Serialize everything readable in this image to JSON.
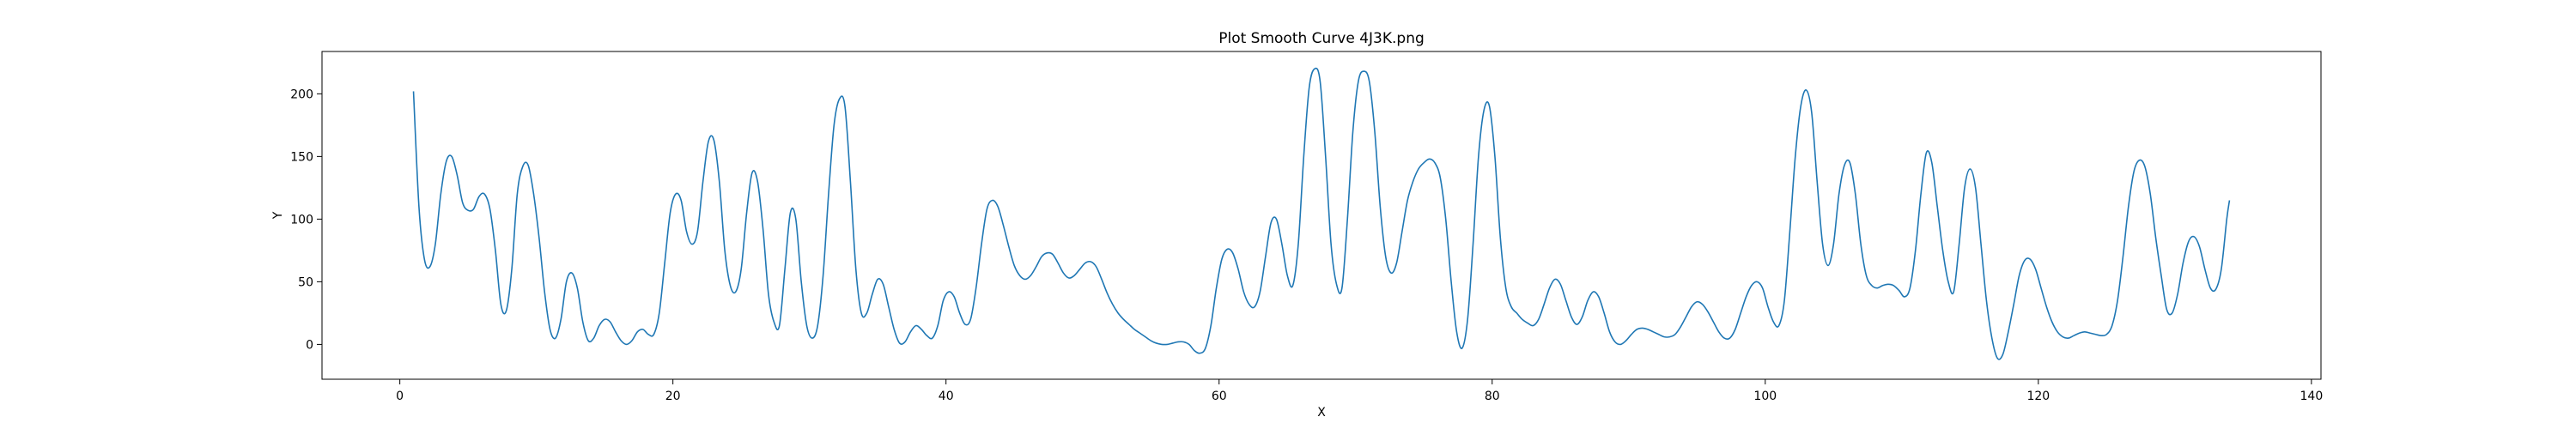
{
  "chart_data": {
    "type": "line",
    "title": "Plot Smooth Curve 4J3K.png",
    "xlabel": "X",
    "ylabel": "Y",
    "xlim": [
      -5.7,
      140.7
    ],
    "ylim": [
      -27.8,
      233.8
    ],
    "x_ticks": [
      0,
      20,
      40,
      60,
      80,
      100,
      120,
      140
    ],
    "y_ticks": [
      0,
      50,
      100,
      150,
      200
    ],
    "grid": false,
    "series": [
      {
        "color": "#1f77b4",
        "points": [
          [
            1,
            202
          ],
          [
            1.4,
            110
          ],
          [
            1.8,
            68
          ],
          [
            2.2,
            62
          ],
          [
            2.6,
            80
          ],
          [
            3.0,
            120
          ],
          [
            3.4,
            146
          ],
          [
            3.8,
            150
          ],
          [
            4.2,
            135
          ],
          [
            4.6,
            113
          ],
          [
            5.0,
            107
          ],
          [
            5.4,
            108
          ],
          [
            5.8,
            118
          ],
          [
            6.2,
            120
          ],
          [
            6.6,
            108
          ],
          [
            7.0,
            75
          ],
          [
            7.4,
            32
          ],
          [
            7.8,
            27
          ],
          [
            8.2,
            60
          ],
          [
            8.6,
            120
          ],
          [
            9.0,
            142
          ],
          [
            9.4,
            143
          ],
          [
            9.8,
            120
          ],
          [
            10.2,
            85
          ],
          [
            10.6,
            42
          ],
          [
            11.0,
            12
          ],
          [
            11.4,
            5
          ],
          [
            11.8,
            20
          ],
          [
            12.2,
            50
          ],
          [
            12.6,
            57
          ],
          [
            13.0,
            45
          ],
          [
            13.4,
            18
          ],
          [
            13.8,
            3
          ],
          [
            14.2,
            5
          ],
          [
            14.6,
            15
          ],
          [
            15.0,
            20
          ],
          [
            15.4,
            18
          ],
          [
            15.8,
            10
          ],
          [
            16.2,
            3
          ],
          [
            16.6,
            0
          ],
          [
            17.0,
            3
          ],
          [
            17.4,
            10
          ],
          [
            17.8,
            12
          ],
          [
            18.2,
            8
          ],
          [
            18.6,
            8
          ],
          [
            19.0,
            25
          ],
          [
            19.4,
            65
          ],
          [
            19.8,
            105
          ],
          [
            20.2,
            120
          ],
          [
            20.6,
            115
          ],
          [
            21.0,
            90
          ],
          [
            21.4,
            80
          ],
          [
            21.8,
            90
          ],
          [
            22.2,
            130
          ],
          [
            22.6,
            162
          ],
          [
            23.0,
            163
          ],
          [
            23.4,
            130
          ],
          [
            23.8,
            75
          ],
          [
            24.2,
            47
          ],
          [
            24.6,
            42
          ],
          [
            25.0,
            60
          ],
          [
            25.4,
            105
          ],
          [
            25.8,
            137
          ],
          [
            26.2,
            130
          ],
          [
            26.6,
            92
          ],
          [
            27.0,
            40
          ],
          [
            27.4,
            18
          ],
          [
            27.8,
            15
          ],
          [
            28.2,
            60
          ],
          [
            28.6,
            105
          ],
          [
            29.0,
            100
          ],
          [
            29.4,
            50
          ],
          [
            29.8,
            15
          ],
          [
            30.2,
            5
          ],
          [
            30.6,
            15
          ],
          [
            31.0,
            55
          ],
          [
            31.4,
            120
          ],
          [
            31.8,
            175
          ],
          [
            32.2,
            196
          ],
          [
            32.6,
            190
          ],
          [
            33.0,
            130
          ],
          [
            33.4,
            60
          ],
          [
            33.8,
            25
          ],
          [
            34.2,
            25
          ],
          [
            34.6,
            40
          ],
          [
            35.0,
            52
          ],
          [
            35.4,
            48
          ],
          [
            35.8,
            30
          ],
          [
            36.2,
            12
          ],
          [
            36.6,
            1
          ],
          [
            37.0,
            2
          ],
          [
            37.4,
            10
          ],
          [
            37.8,
            15
          ],
          [
            38.2,
            12
          ],
          [
            38.6,
            7
          ],
          [
            39.0,
            5
          ],
          [
            39.4,
            15
          ],
          [
            39.8,
            35
          ],
          [
            40.2,
            42
          ],
          [
            40.6,
            38
          ],
          [
            41.0,
            25
          ],
          [
            41.4,
            16
          ],
          [
            41.8,
            20
          ],
          [
            42.2,
            45
          ],
          [
            42.6,
            80
          ],
          [
            43.0,
            108
          ],
          [
            43.4,
            115
          ],
          [
            43.8,
            110
          ],
          [
            44.2,
            95
          ],
          [
            44.6,
            78
          ],
          [
            45.0,
            63
          ],
          [
            45.4,
            55
          ],
          [
            45.8,
            52
          ],
          [
            46.2,
            55
          ],
          [
            46.6,
            62
          ],
          [
            47.0,
            70
          ],
          [
            47.4,
            73
          ],
          [
            47.8,
            72
          ],
          [
            48.2,
            65
          ],
          [
            48.6,
            57
          ],
          [
            49.0,
            53
          ],
          [
            49.4,
            55
          ],
          [
            49.8,
            60
          ],
          [
            50.2,
            65
          ],
          [
            50.6,
            66
          ],
          [
            51.0,
            62
          ],
          [
            51.4,
            52
          ],
          [
            51.8,
            41
          ],
          [
            52.2,
            32
          ],
          [
            52.6,
            25
          ],
          [
            53.0,
            20
          ],
          [
            53.4,
            16
          ],
          [
            53.8,
            12
          ],
          [
            54.2,
            9
          ],
          [
            54.6,
            6
          ],
          [
            55.0,
            3
          ],
          [
            55.4,
            1
          ],
          [
            55.8,
            0
          ],
          [
            56.2,
            0
          ],
          [
            56.6,
            1
          ],
          [
            57.0,
            2
          ],
          [
            57.4,
            2
          ],
          [
            57.8,
            0
          ],
          [
            58.2,
            -5
          ],
          [
            58.6,
            -7
          ],
          [
            59.0,
            -3
          ],
          [
            59.4,
            15
          ],
          [
            59.8,
            45
          ],
          [
            60.2,
            68
          ],
          [
            60.6,
            76
          ],
          [
            61.0,
            73
          ],
          [
            61.4,
            60
          ],
          [
            61.8,
            42
          ],
          [
            62.2,
            32
          ],
          [
            62.6,
            30
          ],
          [
            63.0,
            42
          ],
          [
            63.4,
            70
          ],
          [
            63.8,
            97
          ],
          [
            64.2,
            100
          ],
          [
            64.6,
            80
          ],
          [
            65.0,
            55
          ],
          [
            65.4,
            47
          ],
          [
            65.8,
            80
          ],
          [
            66.2,
            150
          ],
          [
            66.6,
            205
          ],
          [
            67.0,
            220
          ],
          [
            67.4,
            210
          ],
          [
            67.8,
            150
          ],
          [
            68.2,
            80
          ],
          [
            68.6,
            48
          ],
          [
            69.0,
            45
          ],
          [
            69.4,
            100
          ],
          [
            69.8,
            170
          ],
          [
            70.2,
            210
          ],
          [
            70.6,
            218
          ],
          [
            71.0,
            210
          ],
          [
            71.4,
            170
          ],
          [
            71.8,
            110
          ],
          [
            72.2,
            70
          ],
          [
            72.6,
            57
          ],
          [
            73.0,
            65
          ],
          [
            73.4,
            90
          ],
          [
            73.8,
            115
          ],
          [
            74.2,
            130
          ],
          [
            74.6,
            140
          ],
          [
            75.0,
            145
          ],
          [
            75.4,
            148
          ],
          [
            75.8,
            145
          ],
          [
            76.2,
            133
          ],
          [
            76.6,
            100
          ],
          [
            77.0,
            50
          ],
          [
            77.4,
            10
          ],
          [
            77.8,
            -3
          ],
          [
            78.2,
            20
          ],
          [
            78.6,
            80
          ],
          [
            79.0,
            150
          ],
          [
            79.4,
            187
          ],
          [
            79.8,
            190
          ],
          [
            80.2,
            150
          ],
          [
            80.6,
            85
          ],
          [
            81.0,
            45
          ],
          [
            81.4,
            30
          ],
          [
            81.8,
            25
          ],
          [
            82.2,
            20
          ],
          [
            82.6,
            17
          ],
          [
            83.0,
            15
          ],
          [
            83.4,
            20
          ],
          [
            83.8,
            32
          ],
          [
            84.2,
            45
          ],
          [
            84.6,
            52
          ],
          [
            85.0,
            48
          ],
          [
            85.4,
            35
          ],
          [
            85.8,
            22
          ],
          [
            86.2,
            16
          ],
          [
            86.6,
            22
          ],
          [
            87.0,
            35
          ],
          [
            87.4,
            42
          ],
          [
            87.8,
            38
          ],
          [
            88.2,
            25
          ],
          [
            88.6,
            10
          ],
          [
            89.0,
            2
          ],
          [
            89.4,
            0
          ],
          [
            89.8,
            3
          ],
          [
            90.2,
            8
          ],
          [
            90.6,
            12
          ],
          [
            91.0,
            13
          ],
          [
            91.4,
            12
          ],
          [
            91.8,
            10
          ],
          [
            92.2,
            8
          ],
          [
            92.6,
            6
          ],
          [
            93.0,
            6
          ],
          [
            93.4,
            8
          ],
          [
            93.8,
            14
          ],
          [
            94.2,
            22
          ],
          [
            94.6,
            30
          ],
          [
            95.0,
            34
          ],
          [
            95.4,
            32
          ],
          [
            95.8,
            26
          ],
          [
            96.2,
            18
          ],
          [
            96.6,
            10
          ],
          [
            97.0,
            5
          ],
          [
            97.4,
            5
          ],
          [
            97.8,
            12
          ],
          [
            98.2,
            25
          ],
          [
            98.6,
            38
          ],
          [
            99.0,
            47
          ],
          [
            99.4,
            50
          ],
          [
            99.8,
            45
          ],
          [
            100.2,
            30
          ],
          [
            100.6,
            18
          ],
          [
            101.0,
            15
          ],
          [
            101.4,
            35
          ],
          [
            101.8,
            90
          ],
          [
            102.2,
            150
          ],
          [
            102.6,
            190
          ],
          [
            103.0,
            203
          ],
          [
            103.4,
            185
          ],
          [
            103.8,
            130
          ],
          [
            104.2,
            80
          ],
          [
            104.6,
            63
          ],
          [
            105.0,
            80
          ],
          [
            105.4,
            120
          ],
          [
            105.8,
            143
          ],
          [
            106.2,
            145
          ],
          [
            106.6,
            120
          ],
          [
            107.0,
            80
          ],
          [
            107.4,
            55
          ],
          [
            107.8,
            47
          ],
          [
            108.2,
            45
          ],
          [
            108.6,
            47
          ],
          [
            109.0,
            48
          ],
          [
            109.4,
            47
          ],
          [
            109.8,
            43
          ],
          [
            110.2,
            38
          ],
          [
            110.6,
            45
          ],
          [
            111.0,
            75
          ],
          [
            111.4,
            120
          ],
          [
            111.8,
            153
          ],
          [
            112.2,
            145
          ],
          [
            112.6,
            110
          ],
          [
            113.0,
            75
          ],
          [
            113.4,
            50
          ],
          [
            113.8,
            42
          ],
          [
            114.2,
            80
          ],
          [
            114.6,
            125
          ],
          [
            115.0,
            140
          ],
          [
            115.4,
            125
          ],
          [
            115.8,
            80
          ],
          [
            116.2,
            35
          ],
          [
            116.6,
            5
          ],
          [
            117.0,
            -11
          ],
          [
            117.4,
            -8
          ],
          [
            117.8,
            10
          ],
          [
            118.2,
            32
          ],
          [
            118.6,
            55
          ],
          [
            119.0,
            67
          ],
          [
            119.4,
            68
          ],
          [
            119.8,
            60
          ],
          [
            120.2,
            45
          ],
          [
            120.6,
            30
          ],
          [
            121.0,
            18
          ],
          [
            121.4,
            10
          ],
          [
            121.8,
            6
          ],
          [
            122.2,
            5
          ],
          [
            122.6,
            7
          ],
          [
            123.0,
            9
          ],
          [
            123.4,
            10
          ],
          [
            123.8,
            9
          ],
          [
            124.2,
            8
          ],
          [
            124.6,
            7
          ],
          [
            125.0,
            8
          ],
          [
            125.4,
            15
          ],
          [
            125.8,
            35
          ],
          [
            126.2,
            70
          ],
          [
            126.6,
            110
          ],
          [
            127.0,
            138
          ],
          [
            127.4,
            147
          ],
          [
            127.8,
            142
          ],
          [
            128.2,
            120
          ],
          [
            128.6,
            85
          ],
          [
            129.0,
            55
          ],
          [
            129.4,
            28
          ],
          [
            129.8,
            25
          ],
          [
            130.2,
            40
          ],
          [
            130.6,
            65
          ],
          [
            131.0,
            82
          ],
          [
            131.4,
            86
          ],
          [
            131.8,
            78
          ],
          [
            132.2,
            60
          ],
          [
            132.6,
            45
          ],
          [
            133.0,
            44
          ],
          [
            133.4,
            60
          ],
          [
            133.8,
            100
          ],
          [
            134.0,
            115
          ]
        ]
      }
    ]
  }
}
